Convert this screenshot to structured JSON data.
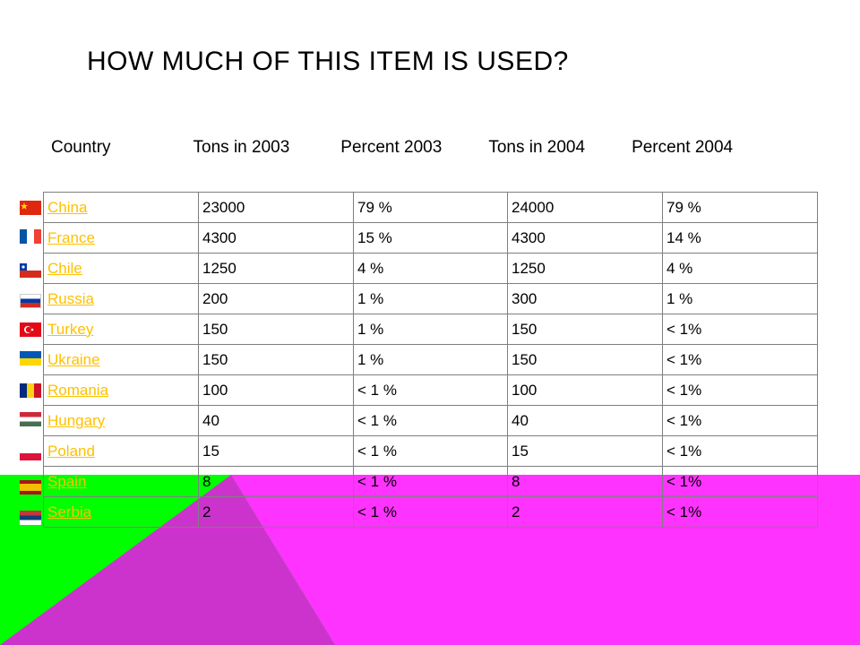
{
  "title": "HOW MUCH OF THIS ITEM IS USED?",
  "table": {
    "headers": [
      "Country",
      "Tons in 2003",
      "Percent 2003",
      "Tons in 2004",
      "Percent 2004"
    ],
    "rows": [
      {
        "country": "China",
        "tons_2003": "23000",
        "pct_2003": "79 %",
        "tons_2004": "24000",
        "pct_2004": "79 %",
        "flag": "china-flag"
      },
      {
        "country": "France",
        "tons_2003": "4300",
        "pct_2003": "15 %",
        "tons_2004": "4300",
        "pct_2004": "14 %",
        "flag": "france-flag"
      },
      {
        "country": "Chile",
        "tons_2003": "1250",
        "pct_2003": "4 %",
        "tons_2004": "1250",
        "pct_2004": "4 %",
        "flag": "chile-flag"
      },
      {
        "country": "Russia",
        "tons_2003": "200",
        "pct_2003": "1 %",
        "tons_2004": "300",
        "pct_2004": "1 %",
        "flag": "russia-flag"
      },
      {
        "country": "Turkey",
        "tons_2003": "150",
        "pct_2003": "1 %",
        "tons_2004": "150",
        "pct_2004": "< 1%",
        "flag": "turkey-flag"
      },
      {
        "country": "Ukraine",
        "tons_2003": "150",
        "pct_2003": "1 %",
        "tons_2004": "150",
        "pct_2004": "< 1%",
        "flag": "ukraine-flag"
      },
      {
        "country": "Romania",
        "tons_2003": "100",
        "pct_2003": "< 1 %",
        "tons_2004": "100",
        "pct_2004": "< 1%",
        "flag": "romania-flag"
      },
      {
        "country": "Hungary",
        "tons_2003": "40",
        "pct_2003": "< 1 %",
        "tons_2004": "40",
        "pct_2004": "< 1%",
        "flag": "hungary-flag"
      },
      {
        "country": "Poland",
        "tons_2003": "15",
        "pct_2003": "< 1 %",
        "tons_2004": "15",
        "pct_2004": "< 1%",
        "flag": "poland-flag"
      },
      {
        "country": "Spain",
        "tons_2003": "8",
        "pct_2003": "< 1 %",
        "tons_2004": "8",
        "pct_2004": "< 1%",
        "flag": "spain-flag"
      },
      {
        "country": "Serbia",
        "tons_2003": "2",
        "pct_2003": "< 1 %",
        "tons_2004": "2",
        "pct_2004": "< 1%",
        "flag": "serbia-flag"
      }
    ]
  },
  "colors": {
    "link": "#ffc000",
    "green_band": "#00ff00",
    "magenta_band": "#ff33ff",
    "purple_triangle": "#cc33cc",
    "grid": "#7f7f7f"
  }
}
